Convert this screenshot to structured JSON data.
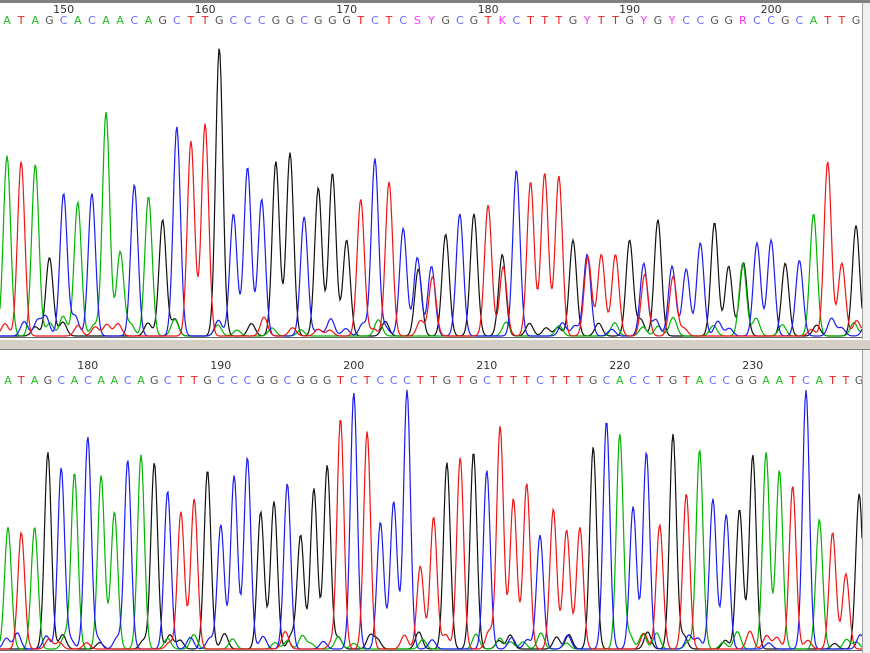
{
  "chart_data": {
    "type": "line",
    "title": "",
    "base_colors": {
      "A": "#00b400",
      "C": "#1c1cf0",
      "G": "#111111",
      "T": "#f01414",
      "ambiguous": "#ff33ff"
    },
    "label_colors": {
      "A": "#22bb22",
      "C": "#6a6aff",
      "G": "#555555",
      "T": "#ee2222",
      "ambiguous": "#ff33ff"
    },
    "panels": [
      {
        "name": "top-trace",
        "start_position": 146,
        "tick_labels": [
          "150",
          "160",
          "170",
          "180",
          "190",
          "200"
        ],
        "sequence": "ATAGCACAACAGCTTGCCCGGCGGGTCTCSYGCGTKCTTTGYTTGYGYCCGGRCCGCATTGW",
        "peak_heights": [
          0.62,
          0.6,
          0.59,
          0.27,
          0.49,
          0.46,
          0.49,
          0.77,
          0.29,
          0.52,
          0.48,
          0.4,
          0.72,
          0.67,
          0.73,
          0.99,
          0.42,
          0.58,
          0.47,
          0.6,
          0.63,
          0.41,
          0.51,
          0.56,
          0.33,
          0.47,
          0.61,
          0.53,
          0.37,
          0.27,
          0.24,
          0.35,
          0.42,
          0.42,
          0.45,
          0.28,
          0.57,
          0.53,
          0.56,
          0.55,
          0.33,
          0.28,
          0.28,
          0.28,
          0.33,
          0.25,
          0.4,
          0.24,
          0.23,
          0.32,
          0.39,
          0.24,
          0.25,
          0.32,
          0.33,
          0.25,
          0.26,
          0.42,
          0.6,
          0.25,
          0.38,
          0.25
        ]
      },
      {
        "name": "bottom-trace",
        "start_position": 174,
        "tick_labels": [
          "180",
          "190",
          "200",
          "210",
          "220",
          "230"
        ],
        "sequence": "ATAGCACAACAGCTTGCCCGGCGGGTCTCCCTTGTGCTTTCTTTGCACCTGTACCGGAATCATTG",
        "peak_heights": [
          0.47,
          0.45,
          0.47,
          0.76,
          0.7,
          0.68,
          0.82,
          0.67,
          0.53,
          0.73,
          0.75,
          0.72,
          0.61,
          0.53,
          0.58,
          0.69,
          0.48,
          0.67,
          0.74,
          0.53,
          0.57,
          0.64,
          0.44,
          0.62,
          0.71,
          0.89,
          0.99,
          0.84,
          0.49,
          0.57,
          1.0,
          0.32,
          0.51,
          0.72,
          0.74,
          0.76,
          0.69,
          0.86,
          0.58,
          0.64,
          0.44,
          0.54,
          0.46,
          0.47,
          0.78,
          0.88,
          0.83,
          0.55,
          0.76,
          0.48,
          0.83,
          0.6,
          0.77,
          0.58,
          0.52,
          0.54,
          0.75,
          0.76,
          0.69,
          0.63,
          1.0,
          0.5,
          0.45,
          0.29,
          0.6
        ]
      }
    ]
  }
}
